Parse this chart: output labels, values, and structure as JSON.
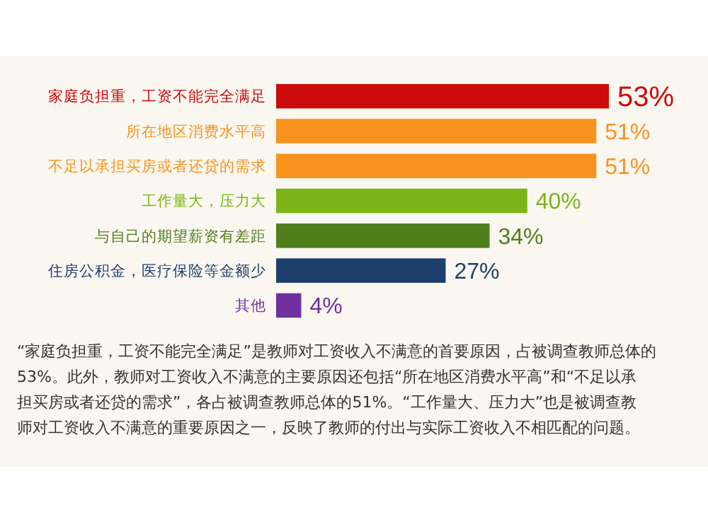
{
  "chart_data": {
    "type": "bar",
    "orientation": "horizontal",
    "value_labels": [
      "53%",
      "51%",
      "51%",
      "40%",
      "34%",
      "27%",
      "4%"
    ],
    "categories": [
      "家庭负担重，工资不能完全满足",
      "所在地区消费水平高",
      "不足以承担买房或者还贷的需求",
      "工作量大，压力大",
      "与自己的期望薪资有差距",
      "住房公积金，医疗保险等金额少",
      "其他"
    ],
    "values": [
      53,
      51,
      51,
      40,
      34,
      27,
      4
    ],
    "colors": [
      "#cc0a0a",
      "#f7941d",
      "#f7941d",
      "#7cb518",
      "#4f7f1c",
      "#1d3f6e",
      "#7030a0"
    ],
    "annotations": [
      "“家庭负担重，工资不能完全满足”是教师对工资收入不满意的首要原因，占被调查教师总体的53%。此外，教师对工资收入不满意的主要原因还包括“所在地区消费水平高”和“不足以承担买房或者还贷的需求”，各占被调查教师总体的51%。“工作量大、压力大”也是被调查教师对工资收入不满意的重要原因之一，反映了教师的付出与实际工资收入不相匹配的问题。"
    ]
  }
}
